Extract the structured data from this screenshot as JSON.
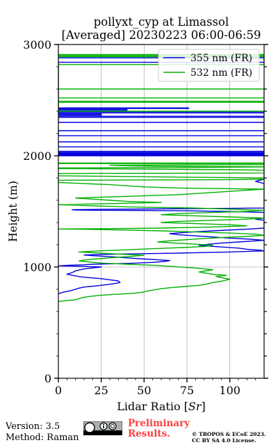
{
  "chart_data": {
    "type": "line",
    "title_line1": "pollyxt_cyp at Limassol",
    "title_line2": "[Averaged] 20230223 06:00-06:59",
    "xlabel_prefix": "Lidar Ratio [",
    "xlabel_unit": "Sr",
    "xlabel_suffix": "]",
    "ylabel": "Height (m)",
    "xlim": [
      0,
      120
    ],
    "ylim": [
      0,
      3000
    ],
    "xticks": [
      "0",
      "25",
      "50",
      "75",
      "100"
    ],
    "xtick_values": [
      0,
      25,
      50,
      75,
      100
    ],
    "yticks": [
      "0",
      "1000",
      "2000",
      "3000"
    ],
    "ytick_values": [
      0,
      1000,
      2000,
      3000
    ],
    "grid": true,
    "legend_position": "top-right",
    "series": [
      {
        "name": "355 nm (FR)",
        "color": "#0000dd",
        "points": [
          [
            0,
            760
          ],
          [
            3,
            775
          ],
          [
            5,
            780
          ],
          [
            8,
            790
          ],
          [
            12,
            810
          ],
          [
            15,
            820
          ],
          [
            22,
            830
          ],
          [
            30,
            845
          ],
          [
            36,
            860
          ],
          [
            35,
            875
          ],
          [
            30,
            885
          ],
          [
            25,
            895
          ],
          [
            20,
            902
          ],
          [
            14,
            910
          ],
          [
            10,
            920
          ],
          [
            5,
            935
          ],
          [
            8,
            950
          ],
          [
            10,
            965
          ],
          [
            14,
            980
          ],
          [
            20,
            992
          ],
          [
            25,
            1000
          ],
          [
            15,
            1005
          ],
          [
            8,
            1008
          ],
          [
            0,
            1010
          ],
          [
            5,
            1015
          ],
          [
            15,
            1020
          ],
          [
            20,
            1025
          ],
          [
            35,
            1030
          ],
          [
            45,
            1035
          ],
          [
            55,
            1042
          ],
          [
            62,
            1050
          ],
          [
            65,
            1058
          ],
          [
            58,
            1065
          ],
          [
            50,
            1072
          ],
          [
            42,
            1080
          ],
          [
            35,
            1088
          ],
          [
            28,
            1095
          ],
          [
            20,
            1102
          ],
          [
            15,
            1108
          ],
          [
            25,
            1112
          ],
          [
            35,
            1116
          ],
          [
            50,
            1120
          ],
          [
            70,
            1125
          ],
          [
            85,
            1130
          ],
          [
            100,
            1135
          ],
          [
            110,
            1140
          ],
          [
            120,
            1145
          ],
          [
            118,
            1150
          ],
          [
            110,
            1160
          ],
          [
            105,
            1170
          ],
          [
            95,
            1180
          ],
          [
            88,
            1188
          ],
          [
            82,
            1195
          ],
          [
            88,
            1205
          ],
          [
            95,
            1215
          ],
          [
            105,
            1225
          ],
          [
            115,
            1235
          ],
          [
            120,
            1240
          ],
          [
            112,
            1250
          ],
          [
            100,
            1260
          ],
          [
            90,
            1270
          ],
          [
            80,
            1280
          ],
          [
            70,
            1290
          ],
          [
            65,
            1300
          ],
          [
            75,
            1312
          ],
          [
            90,
            1325
          ],
          [
            110,
            1340
          ],
          [
            120,
            1350
          ],
          [
            120,
            1420
          ],
          [
            115,
            1430
          ],
          [
            120,
            1440
          ],
          [
            120,
            1490
          ],
          [
            110,
            1495
          ],
          [
            95,
            1500
          ],
          [
            75,
            1505
          ],
          [
            50,
            1508
          ],
          [
            25,
            1510
          ],
          [
            10,
            1512
          ],
          [
            8,
            1515
          ],
          [
            25,
            1518
          ],
          [
            55,
            1522
          ],
          [
            90,
            1526
          ],
          [
            120,
            1530
          ],
          [
            120,
            1750
          ],
          [
            115,
            1770
          ],
          [
            120,
            1790
          ],
          [
            120,
            2000
          ],
          [
            0,
            2000
          ],
          [
            0,
            2005
          ],
          [
            120,
            2005
          ],
          [
            120,
            2010
          ],
          [
            0,
            2010
          ],
          [
            0,
            2015
          ],
          [
            120,
            2015
          ],
          [
            120,
            2020
          ],
          [
            0,
            2020
          ],
          [
            0,
            2025
          ],
          [
            120,
            2025
          ],
          [
            120,
            2030
          ],
          [
            0,
            2030
          ],
          [
            0,
            2040
          ],
          [
            120,
            2040
          ],
          [
            120,
            2080
          ],
          [
            0,
            2080
          ],
          [
            0,
            2125
          ],
          [
            120,
            2125
          ],
          [
            120,
            2180
          ],
          [
            0,
            2180
          ],
          [
            0,
            2225
          ],
          [
            120,
            2225
          ],
          [
            120,
            2300
          ],
          [
            0,
            2300
          ],
          [
            0,
            2345
          ],
          [
            120,
            2345
          ],
          [
            120,
            2355
          ],
          [
            0,
            2355
          ],
          [
            0,
            2365
          ],
          [
            25,
            2365
          ],
          [
            25,
            2375
          ],
          [
            0,
            2375
          ],
          [
            0,
            2385
          ],
          [
            120,
            2385
          ],
          [
            120,
            2395
          ],
          [
            0,
            2395
          ],
          [
            0,
            2405
          ],
          [
            40,
            2405
          ],
          [
            40,
            2415
          ],
          [
            0,
            2415
          ],
          [
            0,
            2425
          ],
          [
            76,
            2425
          ],
          [
            76,
            2430
          ],
          [
            0,
            2430
          ],
          [
            0,
            2840
          ],
          [
            120,
            2840
          ],
          [
            120,
            2880
          ],
          [
            0,
            2880
          ]
        ]
      },
      {
        "name": "532 nm (FR)",
        "color": "#00b000",
        "points": [
          [
            0,
            690
          ],
          [
            3,
            695
          ],
          [
            6,
            700
          ],
          [
            10,
            705
          ],
          [
            12,
            715
          ],
          [
            14,
            725
          ],
          [
            18,
            735
          ],
          [
            24,
            745
          ],
          [
            30,
            752
          ],
          [
            38,
            758
          ],
          [
            45,
            765
          ],
          [
            50,
            775
          ],
          [
            52,
            785
          ],
          [
            56,
            795
          ],
          [
            60,
            805
          ],
          [
            66,
            815
          ],
          [
            74,
            825
          ],
          [
            82,
            835
          ],
          [
            86,
            845
          ],
          [
            90,
            860
          ],
          [
            96,
            875
          ],
          [
            100,
            890
          ],
          [
            95,
            905
          ],
          [
            92,
            915
          ],
          [
            98,
            925
          ],
          [
            90,
            935
          ],
          [
            86,
            945
          ],
          [
            82,
            955
          ],
          [
            86,
            965
          ],
          [
            90,
            975
          ],
          [
            84,
            985
          ],
          [
            76,
            995
          ],
          [
            66,
            1005
          ],
          [
            56,
            1015
          ],
          [
            40,
            1025
          ],
          [
            26,
            1035
          ],
          [
            18,
            1045
          ],
          [
            12,
            1055
          ],
          [
            16,
            1065
          ],
          [
            24,
            1075
          ],
          [
            32,
            1085
          ],
          [
            42,
            1095
          ],
          [
            50,
            1105
          ],
          [
            36,
            1115
          ],
          [
            24,
            1125
          ],
          [
            12,
            1135
          ],
          [
            24,
            1145
          ],
          [
            40,
            1155
          ],
          [
            56,
            1165
          ],
          [
            72,
            1175
          ],
          [
            86,
            1185
          ],
          [
            90,
            1195
          ],
          [
            80,
            1205
          ],
          [
            68,
            1215
          ],
          [
            58,
            1225
          ],
          [
            64,
            1235
          ],
          [
            74,
            1245
          ],
          [
            84,
            1255
          ],
          [
            96,
            1265
          ],
          [
            110,
            1275
          ],
          [
            120,
            1285
          ],
          [
            115,
            1295
          ],
          [
            100,
            1305
          ],
          [
            80,
            1315
          ],
          [
            60,
            1325
          ],
          [
            40,
            1332
          ],
          [
            20,
            1338
          ],
          [
            0,
            1342
          ],
          [
            30,
            1345
          ],
          [
            60,
            1350
          ],
          [
            90,
            1360
          ],
          [
            110,
            1370
          ],
          [
            100,
            1380
          ],
          [
            80,
            1390
          ],
          [
            60,
            1400
          ],
          [
            70,
            1410
          ],
          [
            90,
            1420
          ],
          [
            110,
            1430
          ],
          [
            120,
            1440
          ],
          [
            100,
            1450
          ],
          [
            80,
            1460
          ],
          [
            60,
            1470
          ],
          [
            70,
            1480
          ],
          [
            90,
            1490
          ],
          [
            110,
            1500
          ],
          [
            120,
            1510
          ],
          [
            100,
            1520
          ],
          [
            80,
            1530
          ],
          [
            40,
            1540
          ],
          [
            20,
            1550
          ],
          [
            0,
            1560
          ],
          [
            30,
            1570
          ],
          [
            60,
            1580
          ],
          [
            40,
            1590
          ],
          [
            30,
            1600
          ],
          [
            20,
            1610
          ],
          [
            10,
            1620
          ],
          [
            30,
            1630
          ],
          [
            50,
            1640
          ],
          [
            70,
            1650
          ],
          [
            80,
            1660
          ],
          [
            90,
            1670
          ],
          [
            100,
            1680
          ],
          [
            110,
            1690
          ],
          [
            120,
            1700
          ],
          [
            70,
            1710
          ],
          [
            50,
            1720
          ],
          [
            30,
            1740
          ],
          [
            0,
            1760
          ],
          [
            0,
            1780
          ],
          [
            100,
            1785
          ],
          [
            120,
            1790
          ],
          [
            120,
            1800
          ],
          [
            90,
            1805
          ],
          [
            60,
            1810
          ],
          [
            30,
            1815
          ],
          [
            0,
            1820
          ],
          [
            0,
            1840
          ],
          [
            120,
            1845
          ],
          [
            120,
            1870
          ],
          [
            100,
            1875
          ],
          [
            50,
            1880
          ],
          [
            0,
            1885
          ],
          [
            0,
            1890
          ],
          [
            80,
            1895
          ],
          [
            120,
            1900
          ],
          [
            60,
            1905
          ],
          [
            40,
            1910
          ],
          [
            30,
            1915
          ],
          [
            120,
            1920
          ],
          [
            120,
            1930
          ],
          [
            0,
            1930
          ],
          [
            0,
            1935
          ],
          [
            120,
            1935
          ],
          [
            120,
            2400
          ],
          [
            0,
            2400
          ],
          [
            0,
            2480
          ],
          [
            120,
            2480
          ],
          [
            120,
            2490
          ],
          [
            0,
            2490
          ],
          [
            0,
            2520
          ],
          [
            120,
            2520
          ],
          [
            120,
            2600
          ],
          [
            0,
            2600
          ],
          [
            0,
            2820
          ],
          [
            120,
            2820
          ],
          [
            120,
            2890
          ],
          [
            0,
            2890
          ],
          [
            0,
            2900
          ],
          [
            120,
            2900
          ],
          [
            120,
            2910
          ],
          [
            0,
            2910
          ]
        ]
      }
    ]
  },
  "footer": {
    "version": "Version: 3.5",
    "method": "Method: Raman",
    "preliminary_line1": "Preliminary",
    "preliminary_line2": "Results.",
    "copyright_line1": "© TROPOS & ECoE 2023.",
    "copyright_line2": "CC BY SA 4.0 License."
  }
}
